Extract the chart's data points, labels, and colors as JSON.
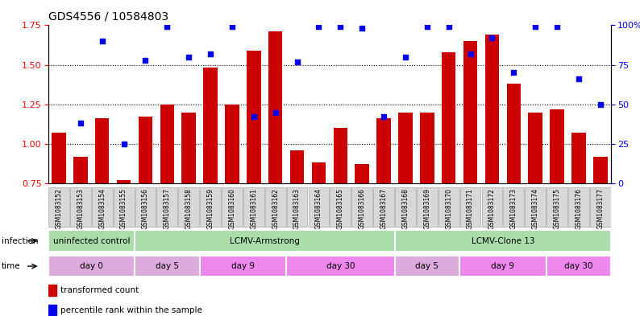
{
  "title": "GDS4556 / 10584803",
  "samples": [
    "GSM1083152",
    "GSM1083153",
    "GSM1083154",
    "GSM1083155",
    "GSM1083156",
    "GSM1083157",
    "GSM1083158",
    "GSM1083159",
    "GSM1083160",
    "GSM1083161",
    "GSM1083162",
    "GSM1083163",
    "GSM1083164",
    "GSM1083165",
    "GSM1083166",
    "GSM1083167",
    "GSM1083168",
    "GSM1083169",
    "GSM1083170",
    "GSM1083171",
    "GSM1083172",
    "GSM1083173",
    "GSM1083174",
    "GSM1083175",
    "GSM1083176",
    "GSM1083177"
  ],
  "bar_values": [
    1.07,
    0.92,
    1.16,
    0.77,
    1.17,
    1.25,
    1.2,
    1.48,
    1.25,
    1.59,
    1.71,
    0.96,
    0.88,
    1.1,
    0.87,
    1.16,
    1.2,
    1.2,
    1.58,
    1.65,
    1.69,
    1.38,
    1.2,
    1.22,
    1.07,
    0.92
  ],
  "dot_values": [
    null,
    38,
    90,
    25,
    78,
    99,
    80,
    82,
    99,
    42,
    45,
    77,
    99,
    99,
    98,
    42,
    80,
    99,
    99,
    82,
    92,
    70,
    99,
    99,
    66,
    50
  ],
  "ylim_left": [
    0.75,
    1.75
  ],
  "ylim_right": [
    0,
    100
  ],
  "yticks_left": [
    0.75,
    1.0,
    1.25,
    1.5,
    1.75
  ],
  "yticks_right": [
    0,
    25,
    50,
    75,
    100
  ],
  "bar_color": "#cc0000",
  "dot_color": "#0000ee",
  "gridline_values": [
    1.0,
    1.25,
    1.5
  ],
  "infection_groups": [
    {
      "label": "uninfected control",
      "start": 0,
      "end": 4,
      "color": "#aaddaa"
    },
    {
      "label": "LCMV-Armstrong",
      "start": 4,
      "end": 16,
      "color": "#aaddaa"
    },
    {
      "label": "LCMV-Clone 13",
      "start": 16,
      "end": 26,
      "color": "#aaddaa"
    }
  ],
  "time_groups": [
    {
      "label": "day 0",
      "start": 0,
      "end": 4,
      "color": "#ddaadd"
    },
    {
      "label": "day 5",
      "start": 4,
      "end": 7,
      "color": "#ddaadd"
    },
    {
      "label": "day 9",
      "start": 7,
      "end": 11,
      "color": "#ee88ee"
    },
    {
      "label": "day 30",
      "start": 11,
      "end": 16,
      "color": "#ee88ee"
    },
    {
      "label": "day 5",
      "start": 16,
      "end": 19,
      "color": "#ddaadd"
    },
    {
      "label": "day 9",
      "start": 19,
      "end": 23,
      "color": "#ee88ee"
    },
    {
      "label": "day 30",
      "start": 23,
      "end": 26,
      "color": "#ee88ee"
    }
  ],
  "legend_bar_label": "transformed count",
  "legend_dot_label": "percentile rank within the sample",
  "infection_arrow_label": "infection",
  "time_arrow_label": "time",
  "tick_bg_color": "#d8d8d8",
  "tick_border_color": "#aaaaaa"
}
